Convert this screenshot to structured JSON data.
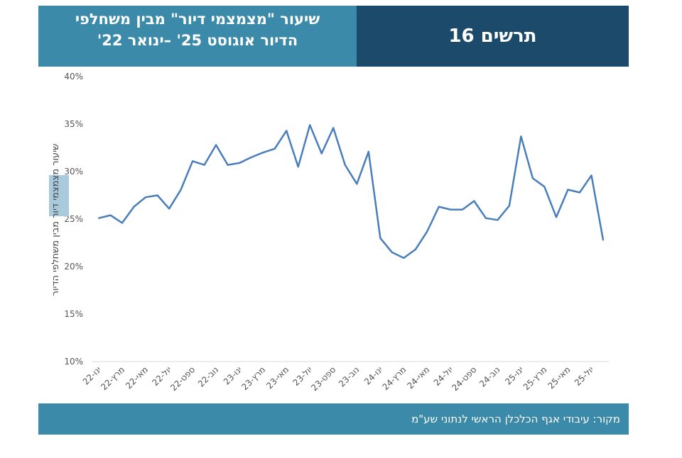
{
  "header": {
    "title_line1": "שיעור \"מצמצמי דיור\" מבין משחלפי",
    "title_line2": "הדיור אוגוסט 25' –ינואר 22'",
    "figure_label": "תרשים 16"
  },
  "footer": {
    "source": "מקור: עיבודי אגף הכלכלן הראשי לנתוני שע\"מ"
  },
  "colors": {
    "line": "#4a7ebb",
    "header_light": "#3b8aa9",
    "header_dark": "#1b4a6b"
  },
  "chart_data": {
    "type": "line",
    "ylabel_parts": [
      "שיעור ",
      "מצמצמי",
      " דיור מבין משחלפי הדיור"
    ],
    "ylim": [
      10,
      40
    ],
    "yticks": [
      10,
      15,
      20,
      25,
      30,
      35,
      40
    ],
    "ytick_labels": [
      "10%",
      "15%",
      "20%",
      "25%",
      "30%",
      "35%",
      "40%"
    ],
    "xtick_labels": [
      "ינו-22",
      "מרץ-22",
      "מאי-22",
      "יול-22",
      "ספט-22",
      "נוב-22",
      "ינו-23",
      "מרץ-23",
      "מאי-23",
      "יול-23",
      "ספט-23",
      "נוב-23",
      "ינו-24",
      "מרץ-24",
      "מאי-24",
      "יול-24",
      "ספט-24",
      "נוב-24",
      "ינו-25",
      "מרץ-25",
      "מאי-25",
      "יול-25"
    ],
    "series": [
      {
        "name": "שיעור מצמצמי דיור",
        "values": [
          25.1,
          25.4,
          24.6,
          26.3,
          27.3,
          27.5,
          26.1,
          28.1,
          31.1,
          30.7,
          32.8,
          30.7,
          30.9,
          31.5,
          32.0,
          32.4,
          34.3,
          30.5,
          34.9,
          31.9,
          34.6,
          30.7,
          28.7,
          32.1,
          23.0,
          21.5,
          20.9,
          21.8,
          23.7,
          26.3,
          26.0,
          26.0,
          26.9,
          25.1,
          24.9,
          26.4,
          33.7,
          29.3,
          28.4,
          25.2,
          28.1,
          27.8,
          29.6,
          22.8
        ]
      }
    ]
  }
}
